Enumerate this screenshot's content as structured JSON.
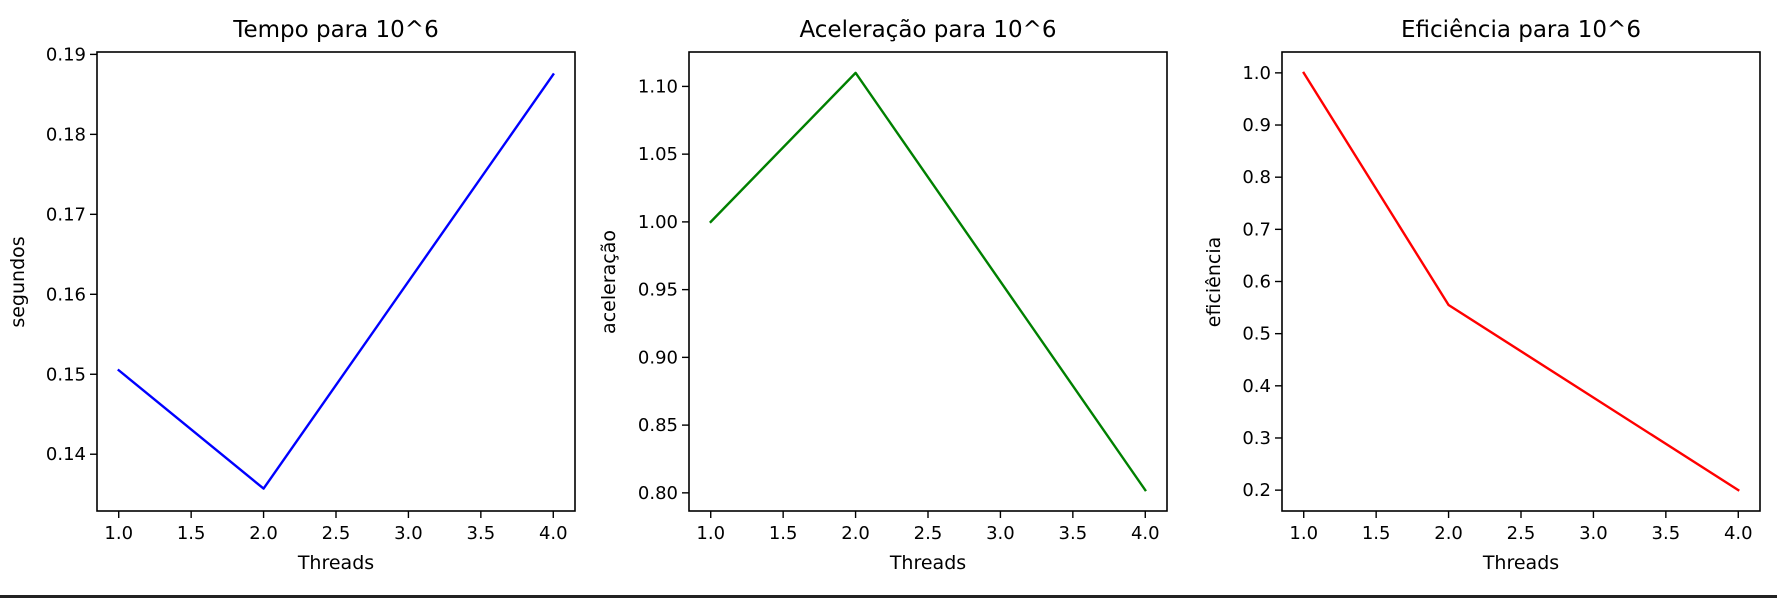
{
  "colors": {
    "background": "#ffffff",
    "axes": "#000000"
  },
  "chart_data": [
    {
      "type": "line",
      "title": "Tempo para 10^6",
      "xlabel": "Threads",
      "ylabel": "segundos",
      "x": [
        1,
        2,
        4
      ],
      "series": [
        {
          "values": [
            0.1505,
            0.1357,
            0.1875
          ],
          "color": "#0000ff"
        }
      ],
      "xlim": [
        0.85,
        4.15
      ],
      "ylim": [
        0.1329,
        0.1903
      ],
      "xticks": [
        1.0,
        1.5,
        2.0,
        2.5,
        3.0,
        3.5,
        4.0
      ],
      "xtick_labels": [
        "1.0",
        "1.5",
        "2.0",
        "2.5",
        "3.0",
        "3.5",
        "4.0"
      ],
      "yticks": [
        0.14,
        0.15,
        0.16,
        0.17,
        0.18,
        0.19
      ],
      "ytick_labels": [
        "0.14",
        "0.15",
        "0.16",
        "0.17",
        "0.18",
        "0.19"
      ],
      "grid": false,
      "legend": false
    },
    {
      "type": "line",
      "title": "Aceleração para 10^6",
      "xlabel": "Threads",
      "ylabel": "aceleração",
      "x": [
        1,
        2,
        4
      ],
      "series": [
        {
          "values": [
            1.0,
            1.11,
            0.802
          ],
          "color": "#008000"
        }
      ],
      "xlim": [
        0.85,
        4.15
      ],
      "ylim": [
        0.7866,
        1.1254
      ],
      "xticks": [
        1.0,
        1.5,
        2.0,
        2.5,
        3.0,
        3.5,
        4.0
      ],
      "xtick_labels": [
        "1.0",
        "1.5",
        "2.0",
        "2.5",
        "3.0",
        "3.5",
        "4.0"
      ],
      "yticks": [
        0.8,
        0.85,
        0.9,
        0.95,
        1.0,
        1.05,
        1.1
      ],
      "ytick_labels": [
        "0.80",
        "0.85",
        "0.90",
        "0.95",
        "1.00",
        "1.05",
        "1.10"
      ],
      "grid": false,
      "legend": false
    },
    {
      "type": "line",
      "title": "Eficiência para 10^6",
      "xlabel": "Threads",
      "ylabel": "eficiência",
      "x": [
        1,
        2,
        4
      ],
      "series": [
        {
          "values": [
            1.0,
            0.555,
            0.2
          ],
          "color": "#ff0000"
        }
      ],
      "xlim": [
        0.85,
        4.15
      ],
      "ylim": [
        0.16,
        1.04
      ],
      "xticks": [
        1.0,
        1.5,
        2.0,
        2.5,
        3.0,
        3.5,
        4.0
      ],
      "xtick_labels": [
        "1.0",
        "1.5",
        "2.0",
        "2.5",
        "3.0",
        "3.5",
        "4.0"
      ],
      "yticks": [
        0.2,
        0.3,
        0.4,
        0.5,
        0.6,
        0.7,
        0.8,
        0.9,
        1.0
      ],
      "ytick_labels": [
        "0.2",
        "0.3",
        "0.4",
        "0.5",
        "0.6",
        "0.7",
        "0.8",
        "0.9",
        "1.0"
      ],
      "grid": false,
      "legend": false
    }
  ]
}
